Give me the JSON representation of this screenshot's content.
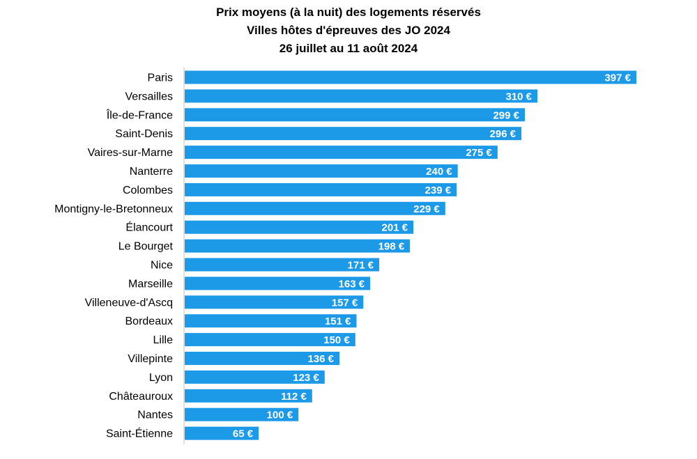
{
  "chart_data": {
    "type": "bar",
    "orientation": "horizontal",
    "title": [
      "Prix moyens (à la nuit) des logements réservés",
      "Villes hôtes d'épreuves des JO 2024",
      "26 juillet au 11 août 2024"
    ],
    "categories": [
      "Paris",
      "Versailles",
      "Île-de-France",
      "Saint-Denis",
      "Vaires-sur-Marne",
      "Nanterre",
      "Colombes",
      "Montigny-le-Bretonneux",
      "Élancourt",
      "Le Bourget",
      "Nice",
      "Marseille",
      "Villeneuve-d'Ascq",
      "Bordeaux",
      "Lille",
      "Villepinte",
      "Lyon",
      "Châteauroux",
      "Nantes",
      "Saint-Étienne"
    ],
    "values": [
      397,
      310,
      299,
      296,
      275,
      240,
      239,
      229,
      201,
      198,
      171,
      163,
      157,
      151,
      150,
      136,
      123,
      112,
      100,
      65
    ],
    "value_labels": [
      "397 €",
      "310 €",
      "299 €",
      "296 €",
      "275 €",
      "240 €",
      "239 €",
      "229 €",
      "201 €",
      "198 €",
      "171 €",
      "163 €",
      "157 €",
      "151 €",
      "150 €",
      "136 €",
      "123 €",
      "112 €",
      "100 €",
      "65 €"
    ],
    "bar_color": "#1C9AE8",
    "axis_color": "#BFBFBF",
    "grid": false,
    "legend": "none"
  }
}
